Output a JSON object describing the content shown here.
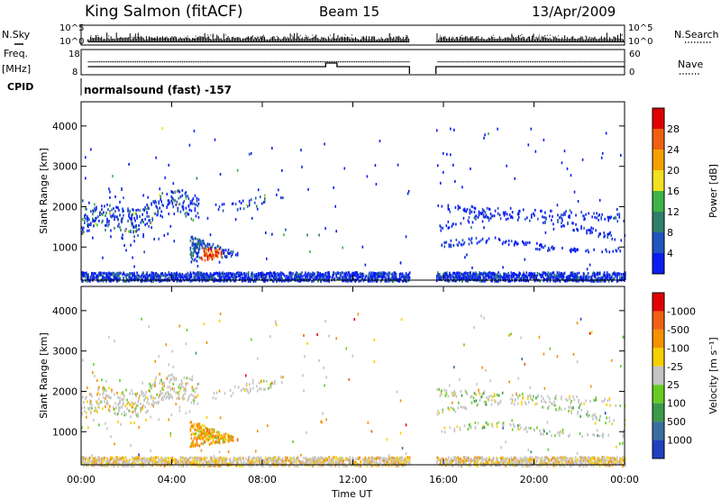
{
  "header": {
    "station": "King Salmon (fitACF)",
    "beam": "Beam 15",
    "date": "13/Apr/2009"
  },
  "params": {
    "nsky_label": "N.Sky",
    "nsky_ticks": [
      "10^5",
      "10^0"
    ],
    "nsearch_label": "N.Search",
    "freq_label": "Freq.",
    "freq_unit": "[MHz]",
    "freq_ticks": [
      "18",
      "8"
    ],
    "nave_label": "Nave",
    "nave_ticks": [
      "60",
      "0"
    ],
    "cpid_label": "CPID",
    "cpid_value": "normalsound (fast) -157"
  },
  "chart_data": [
    {
      "type": "heatmap",
      "title": "",
      "quantity": "Power",
      "xlabel": "Time UT",
      "ylabel": "Slant Range [km]",
      "xlim": [
        "00:00",
        "24:00"
      ],
      "ylim": [
        180,
        4600
      ],
      "x_ticks": [
        "00:00",
        "04:00",
        "08:00",
        "12:00",
        "16:00",
        "20:00",
        "00:00"
      ],
      "y_ticks": [
        1000,
        2000,
        3000,
        4000
      ],
      "colorbar": {
        "label": "Power [dB]",
        "ticks": [
          "4",
          "8",
          "12",
          "16",
          "20",
          "24",
          "28"
        ],
        "colors": [
          "#0a1ef0",
          "#2055c0",
          "#2f7f6a",
          "#3cb548",
          "#f0e020",
          "#f5a000",
          "#f06010",
          "#e00000"
        ]
      },
      "data_gap": [
        "14:30",
        "15:40"
      ],
      "features": [
        {
          "name": "E-region backscatter",
          "time": [
            "00:00",
            "24:00"
          ],
          "range_km": [
            180,
            400
          ],
          "power_db": [
            4,
            10
          ]
        },
        {
          "name": "Morning ionospheric band",
          "time": [
            "00:00",
            "05:10"
          ],
          "range_km": [
            1400,
            2300
          ],
          "power_db": [
            4,
            16
          ]
        },
        {
          "name": "Post-sunrise strong echo",
          "time": [
            "04:50",
            "06:45"
          ],
          "range_km": [
            600,
            1300
          ],
          "power_db": [
            8,
            30
          ]
        },
        {
          "name": "Afternoon bands",
          "time": [
            "15:40",
            "24:00"
          ],
          "range_km": [
            950,
            2300
          ],
          "power_db": [
            4,
            10
          ]
        }
      ]
    },
    {
      "type": "heatmap",
      "title": "",
      "quantity": "Velocity",
      "xlabel": "Time UT",
      "ylabel": "Slant Range [km]",
      "xlim": [
        "00:00",
        "24:00"
      ],
      "ylim": [
        180,
        4600
      ],
      "x_ticks": [
        "00:00",
        "04:00",
        "08:00",
        "12:00",
        "16:00",
        "20:00",
        "00:00"
      ],
      "y_ticks": [
        1000,
        2000,
        3000,
        4000
      ],
      "colorbar": {
        "label": "Velocity [m s⁻¹]",
        "ticks": [
          "1000",
          "500",
          "100",
          "25",
          "-25",
          "-100",
          "-500",
          "-1000"
        ],
        "colors": [
          "#2040c0",
          "#3a6ea0",
          "#3a9a4a",
          "#66cc22",
          "#c4c4c4",
          "#f5d000",
          "#f59000",
          "#f06010",
          "#e00000"
        ]
      },
      "data_gap": [
        "14:30",
        "15:40"
      ],
      "features": [
        {
          "name": "E-region backscatter",
          "time": [
            "00:00",
            "24:00"
          ],
          "range_km": [
            180,
            400
          ],
          "velocity_ms": [
            -25,
            25
          ]
        },
        {
          "name": "Morning ionospheric band",
          "time": [
            "00:00",
            "05:10"
          ],
          "range_km": [
            1400,
            2300
          ],
          "velocity_ms": [
            -25,
            25
          ]
        },
        {
          "name": "Post-sunrise strong echo",
          "time": [
            "04:50",
            "06:45"
          ],
          "range_km": [
            600,
            1300
          ],
          "velocity_ms": [
            -500,
            -100
          ]
        },
        {
          "name": "Afternoon bands",
          "time": [
            "15:40",
            "24:00"
          ],
          "range_km": [
            950,
            2300
          ],
          "velocity_ms": [
            -25,
            100
          ]
        }
      ]
    }
  ]
}
